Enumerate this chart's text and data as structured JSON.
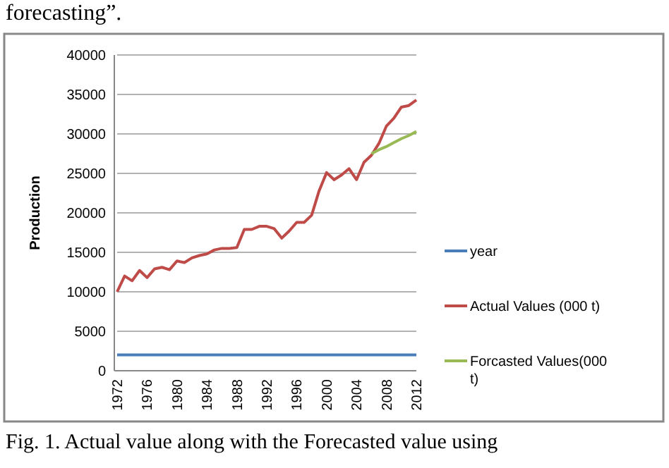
{
  "chart_data": {
    "type": "line",
    "ylabel": "Production",
    "categories": [
      "1972",
      null,
      null,
      null,
      "1976",
      null,
      null,
      null,
      "1980",
      null,
      null,
      null,
      "1984",
      null,
      null,
      null,
      "1988",
      null,
      null,
      null,
      "1992",
      null,
      null,
      null,
      "1996",
      null,
      null,
      null,
      "2000",
      null,
      null,
      null,
      "2004",
      null,
      null,
      null,
      "2008",
      null,
      null,
      null,
      "2012"
    ],
    "series": [
      {
        "name": "year",
        "color": "#4a7ebb",
        "values": [
          2000,
          2000,
          2000,
          2000,
          2000,
          2000,
          2000,
          2000,
          2000,
          2000,
          2000,
          2000,
          2000,
          2000,
          2000,
          2000,
          2000,
          2000,
          2000,
          2000,
          2000,
          2000,
          2000,
          2000,
          2000,
          2000,
          2000,
          2000,
          2000,
          2000,
          2000,
          2000,
          2000,
          2000,
          2000,
          2000,
          2000,
          2000,
          2000,
          2000,
          2000
        ]
      },
      {
        "name": "Actual Values (000 t)",
        "color": "#be4b48",
        "values": [
          10000,
          12000,
          11400,
          12700,
          11800,
          12900,
          13100,
          12800,
          13900,
          13700,
          14300,
          14600,
          14800,
          15300,
          15500,
          15500,
          15600,
          17900,
          17900,
          18300,
          18300,
          18000,
          16800,
          17700,
          18800,
          18800,
          19700,
          22800,
          25100,
          24200,
          24800,
          25600,
          24200,
          26400,
          27300,
          28800,
          31000,
          32000,
          33400,
          33600,
          34300
        ]
      },
      {
        "name": "Forcasted Values(000 t)",
        "color": "#98b954",
        "values": [
          null,
          null,
          null,
          null,
          null,
          null,
          null,
          null,
          null,
          null,
          null,
          null,
          null,
          null,
          null,
          null,
          null,
          null,
          null,
          null,
          null,
          null,
          null,
          null,
          null,
          null,
          null,
          null,
          null,
          null,
          null,
          null,
          null,
          null,
          27500,
          28000,
          28400,
          28900,
          29400,
          29800,
          30300
        ]
      }
    ],
    "ylim": [
      0,
      40000
    ],
    "yticks": [
      0,
      5000,
      10000,
      15000,
      20000,
      25000,
      30000,
      35000,
      40000
    ],
    "grid": "y",
    "legend": "right",
    "marker": "none",
    "line_style": "solid",
    "annotations": [
      "forecasting”.",
      "Fig. 1. Actual value along with the Forecasted value using"
    ]
  }
}
